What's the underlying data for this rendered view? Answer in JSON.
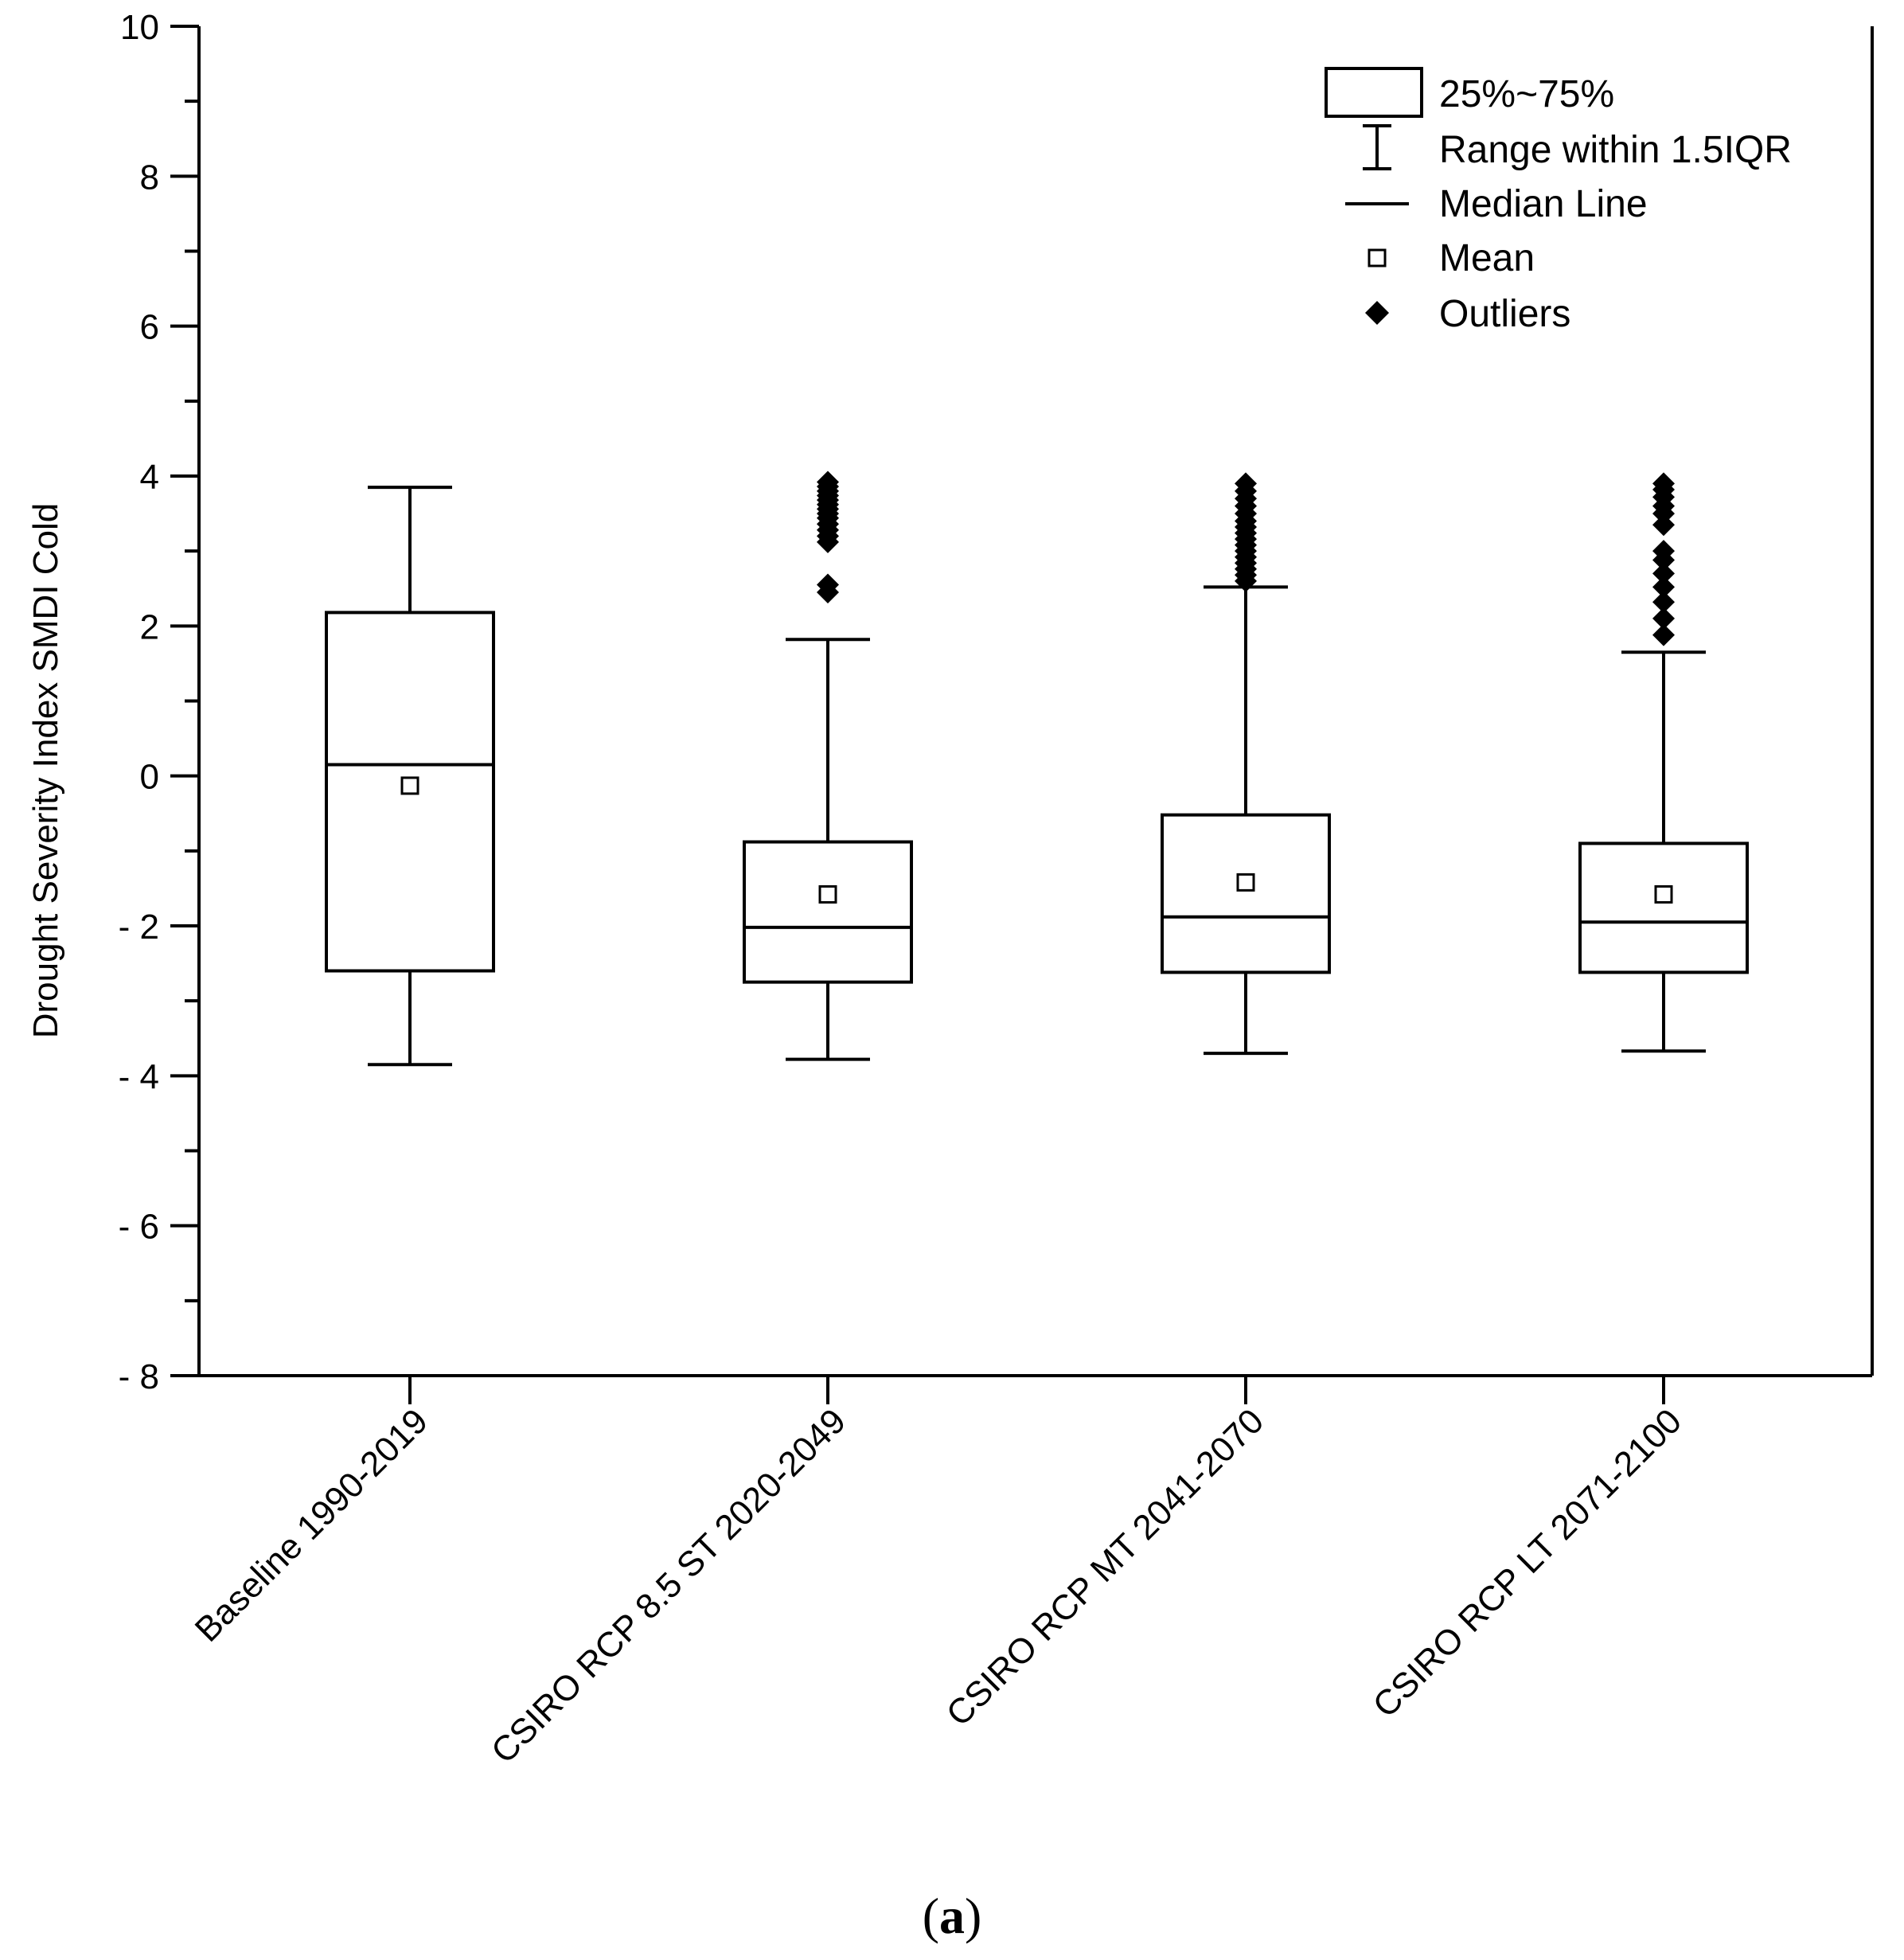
{
  "chart_data": {
    "type": "box",
    "title": "",
    "xlabel": "",
    "ylabel": "Drought Severity Index SMDI Cold",
    "ylim": [
      -8,
      10
    ],
    "y_major_ticks": [
      -8,
      -6,
      -4,
      -2,
      0,
      2,
      4,
      6,
      8,
      10
    ],
    "y_tick_labels": [
      "- 8",
      "- 6",
      "- 4",
      "- 2",
      "0",
      "2",
      "4",
      "6",
      "8",
      "10"
    ],
    "categories": [
      "Baseline 1990-2019",
      "CSIRO RCP 8.5 ST 2020-2049",
      "CSIRO RCP MT 2041-2070",
      "CSIRO RCP LT 2071-2100"
    ],
    "boxes": [
      {
        "whisker_low": -3.85,
        "q1": -2.6,
        "median": 0.15,
        "q3": 2.18,
        "whisker_high": 3.85,
        "mean": -0.13,
        "outliers": []
      },
      {
        "whisker_low": -3.78,
        "q1": -2.75,
        "median": -2.02,
        "q3": -0.88,
        "whisker_high": 1.82,
        "mean": -1.58,
        "outliers": [
          2.45,
          2.55,
          3.12,
          3.2,
          3.28,
          3.36,
          3.44,
          3.5,
          3.56,
          3.62,
          3.68,
          3.74,
          3.8,
          3.86,
          3.92
        ]
      },
      {
        "whisker_low": -3.7,
        "q1": -2.62,
        "median": -1.88,
        "q3": -0.52,
        "whisker_high": 2.52,
        "mean": -1.42,
        "outliers": [
          2.6,
          2.68,
          2.76,
          2.84,
          2.92,
          3.0,
          3.08,
          3.16,
          3.24,
          3.32,
          3.4,
          3.5,
          3.6,
          3.7,
          3.8,
          3.9
        ]
      },
      {
        "whisker_low": -3.67,
        "q1": -2.62,
        "median": -1.95,
        "q3": -0.9,
        "whisker_high": 1.65,
        "mean": -1.58,
        "outliers": [
          1.88,
          2.1,
          2.32,
          2.52,
          2.7,
          2.88,
          3.0,
          3.35,
          3.5,
          3.6,
          3.72,
          3.82,
          3.9
        ]
      }
    ],
    "legend": {
      "position": "top-right",
      "items": [
        "25%~75%",
        "Range within 1.5IQR",
        "Median Line",
        "Mean",
        "Outliers"
      ]
    },
    "panel_label": {
      "open": "(",
      "letter": "a",
      "close": ")"
    }
  }
}
